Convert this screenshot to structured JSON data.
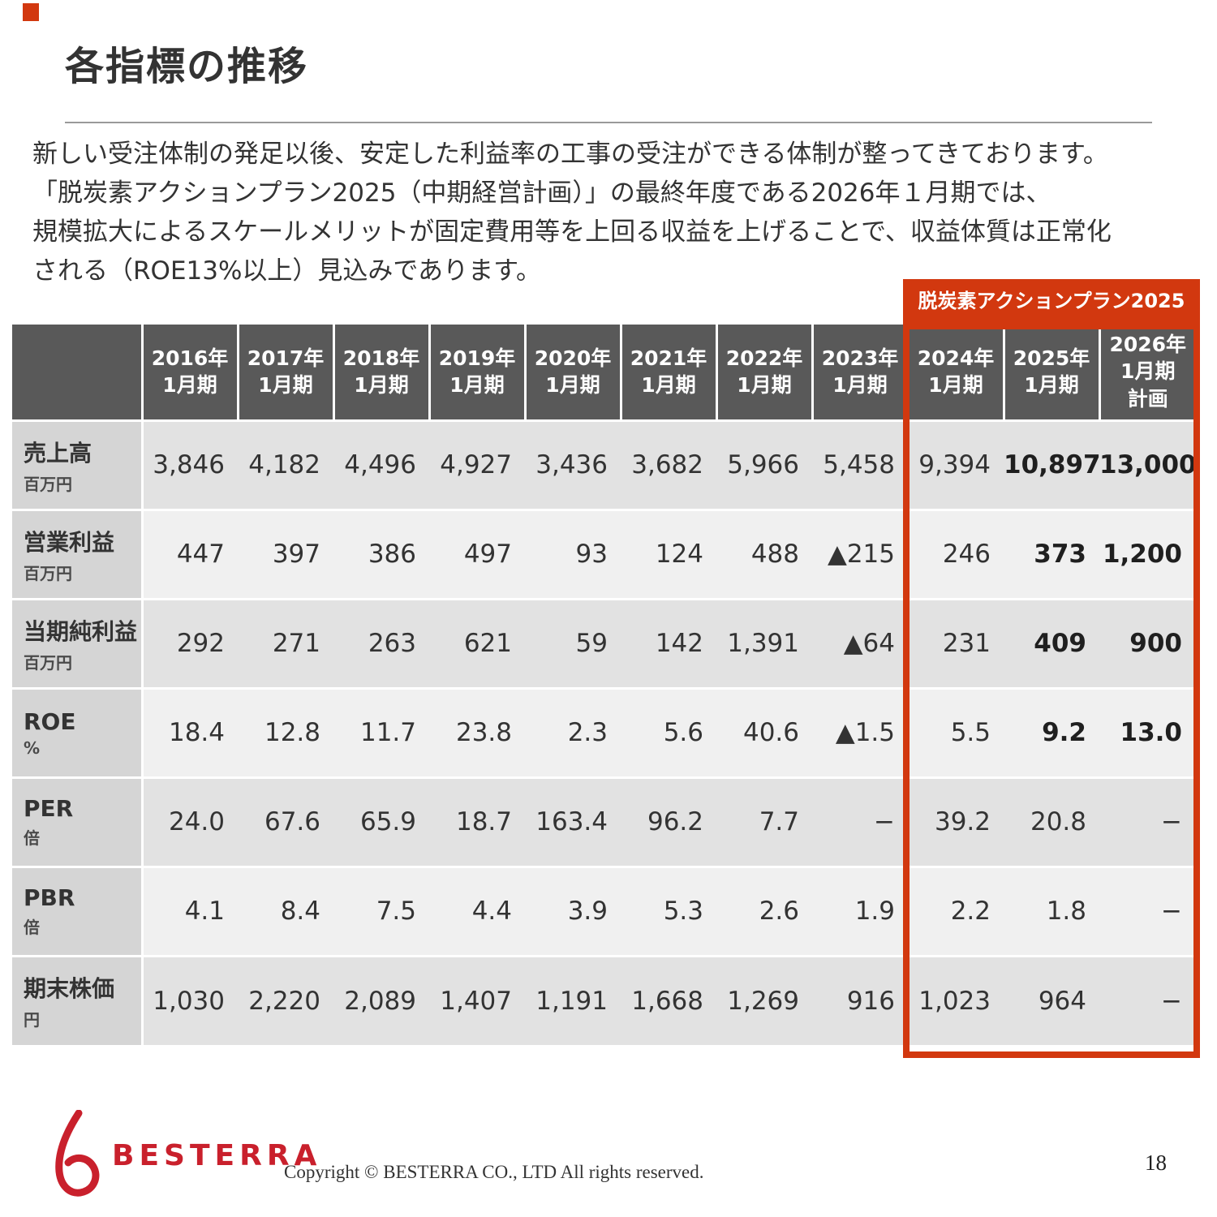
{
  "slide": {
    "title": "各指標の推移",
    "page_number": "18"
  },
  "intro": "新しい受注体制の発足以後、安定した利益率の工事の受注ができる体制が整ってきております。\n「脱炭素アクションプラン2025（中期経営計画）」の最終年度である2026年１月期では、\n規模拡大によるスケールメリットが固定費用等を上回る収益を上げることで、収益体質は正常化\nされる（ROE13%以上）見込みであります。",
  "plan": {
    "badge": "脱炭素アクションプラン2025"
  },
  "table": {
    "columns": [
      {
        "id": "2016",
        "label": "2016年\n1月期"
      },
      {
        "id": "2017",
        "label": "2017年\n1月期"
      },
      {
        "id": "2018",
        "label": "2018年\n1月期"
      },
      {
        "id": "2019",
        "label": "2019年\n1月期"
      },
      {
        "id": "2020",
        "label": "2020年\n1月期"
      },
      {
        "id": "2021",
        "label": "2021年\n1月期"
      },
      {
        "id": "2022",
        "label": "2022年\n1月期"
      },
      {
        "id": "2023",
        "label": "2023年\n1月期"
      },
      {
        "id": "2024",
        "label": "2024年\n1月期"
      },
      {
        "id": "2025",
        "label": "2025年\n1月期"
      },
      {
        "id": "2026",
        "label": "2026年\n1月期\n計画"
      }
    ],
    "rows": [
      {
        "name": "売上高",
        "unit": "百万円",
        "values": [
          "3,846",
          "4,182",
          "4,496",
          "4,927",
          "3,436",
          "3,682",
          "5,966",
          "5,458",
          "9,394",
          "10,897",
          "13,000"
        ],
        "bold_columns": [
          9,
          10
        ]
      },
      {
        "name": "営業利益",
        "unit": "百万円",
        "values": [
          "447",
          "397",
          "386",
          "497",
          "93",
          "124",
          "488",
          "▲215",
          "246",
          "373",
          "1,200"
        ],
        "bold_columns": [
          9,
          10
        ]
      },
      {
        "name": "当期純利益",
        "unit": "百万円",
        "values": [
          "292",
          "271",
          "263",
          "621",
          "59",
          "142",
          "1,391",
          "▲64",
          "231",
          "409",
          "900"
        ],
        "bold_columns": [
          9,
          10
        ]
      },
      {
        "name": "ROE",
        "unit": "%",
        "values": [
          "18.4",
          "12.8",
          "11.7",
          "23.8",
          "2.3",
          "5.6",
          "40.6",
          "▲1.5",
          "5.5",
          "9.2",
          "13.0"
        ],
        "bold_columns": [
          9,
          10
        ]
      },
      {
        "name": "PER",
        "unit": "倍",
        "values": [
          "24.0",
          "67.6",
          "65.9",
          "18.7",
          "163.4",
          "96.2",
          "7.7",
          "−",
          "39.2",
          "20.8",
          "−"
        ],
        "bold_columns": []
      },
      {
        "name": "PBR",
        "unit": "倍",
        "values": [
          "4.1",
          "8.4",
          "7.5",
          "4.4",
          "3.9",
          "5.3",
          "2.6",
          "1.9",
          "2.2",
          "1.8",
          "−"
        ],
        "bold_columns": []
      },
      {
        "name": "期末株価",
        "unit": "円",
        "values": [
          "1,030",
          "2,220",
          "2,089",
          "1,407",
          "1,191",
          "1,668",
          "1,269",
          "916",
          "1,023",
          "964",
          "−"
        ],
        "bold_columns": []
      }
    ]
  },
  "footer": {
    "logo_text": "BESTERRA",
    "copyright": "Copyright © BESTERRA CO., LTD All rights reserved."
  },
  "colors": {
    "accent": "#d2380f",
    "header_bg": "#595959",
    "label_bg": "#d5d5d5",
    "band_dark": "#e2e2e2",
    "band_light": "#f0f0f0",
    "logo_red": "#c9202c"
  }
}
